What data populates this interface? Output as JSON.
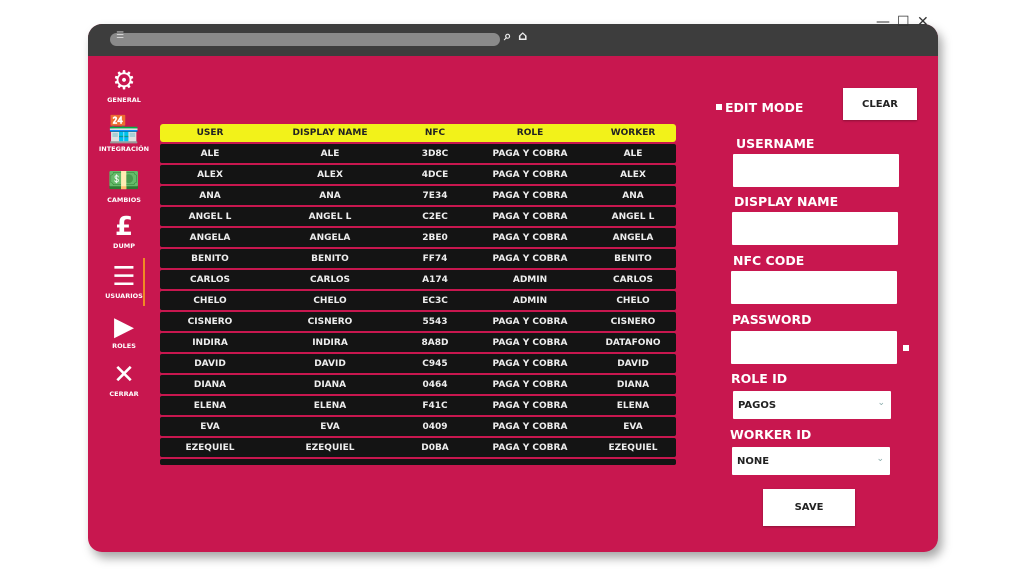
{
  "titlebar": {
    "menu_icon": "sliders-icon",
    "search_icon": "search-icon",
    "home_icon": "home-icon",
    "minimize": "—",
    "maximize": "☐",
    "close": "✕"
  },
  "sidebar": {
    "items": [
      {
        "label": "GENERAL",
        "icon": "head-gear-icon",
        "glyph": "⚙"
      },
      {
        "label": "INTEGRACIÓN",
        "icon": "store-icon",
        "glyph": "🏪"
      },
      {
        "label": "CAMBIOS",
        "icon": "cash-icon",
        "glyph": "💵"
      },
      {
        "label": "DUMP",
        "icon": "money-bag-icon",
        "glyph": "£"
      },
      {
        "label": "USUARIOS",
        "icon": "users-settings-icon",
        "glyph": "☰"
      },
      {
        "label": "ROLES",
        "icon": "play-gear-icon",
        "glyph": "▶"
      },
      {
        "label": "CERRAR",
        "icon": "close-icon",
        "glyph": "✕"
      }
    ],
    "active": "USUARIOS",
    "accent": "#f08a24"
  },
  "table": {
    "headers": [
      "USER",
      "DISPLAY NAME",
      "NFC",
      "ROLE",
      "WORKER"
    ],
    "rows": [
      [
        "ALE",
        "ALE",
        "3D8C",
        "PAGA Y COBRA",
        "ALE"
      ],
      [
        "ALEX",
        "ALEX",
        "4DCE",
        "PAGA Y COBRA",
        "ALEX"
      ],
      [
        "ANA",
        "ANA",
        "7E34",
        "PAGA Y COBRA",
        "ANA"
      ],
      [
        "ANGEL L",
        "ANGEL L",
        "C2EC",
        "PAGA Y COBRA",
        "ANGEL L"
      ],
      [
        "ANGELA",
        "ANGELA",
        "2BE0",
        "PAGA Y COBRA",
        "ANGELA"
      ],
      [
        "BENITO",
        "BENITO",
        "FF74",
        "PAGA Y COBRA",
        "BENITO"
      ],
      [
        "CARLOS",
        "CARLOS",
        "A174",
        "ADMIN",
        "CARLOS"
      ],
      [
        "CHELO",
        "CHELO",
        "EC3C",
        "ADMIN",
        "CHELO"
      ],
      [
        "CISNERO",
        "CISNERO",
        "5543",
        "PAGA Y COBRA",
        "CISNERO"
      ],
      [
        "INDIRA",
        "INDIRA",
        "8A8D",
        "PAGA Y COBRA",
        "DATAFONO"
      ],
      [
        "DAVID",
        "DAVID",
        "C945",
        "PAGA Y COBRA",
        "DAVID"
      ],
      [
        "DIANA",
        "DIANA",
        "0464",
        "PAGA Y COBRA",
        "DIANA"
      ],
      [
        "ELENA",
        "ELENA",
        "F41C",
        "PAGA Y COBRA",
        "ELENA"
      ],
      [
        "EVA",
        "EVA",
        "0409",
        "PAGA Y COBRA",
        "EVA"
      ],
      [
        "EZEQUIEL",
        "EZEQUIEL",
        "D0BA",
        "PAGA Y COBRA",
        "EZEQUIEL"
      ]
    ]
  },
  "form": {
    "edit_mode": "EDIT MODE",
    "clear": "CLEAR",
    "username_label": "USERNAME",
    "username": "",
    "display_name_label": "DISPLAY NAME",
    "display_name": "",
    "nfc_label": "NFC CODE",
    "nfc": "",
    "password_label": "PASSWORD",
    "password": "",
    "role_label": "ROLE ID",
    "role_value": "PAGOS",
    "worker_label": "WORKER  ID",
    "worker_value": "NONE",
    "save": "SAVE"
  },
  "colors": {
    "background": "#c8174f",
    "header": "#f2f21a",
    "row": "#141414",
    "titlebar": "#3d3d3d"
  }
}
